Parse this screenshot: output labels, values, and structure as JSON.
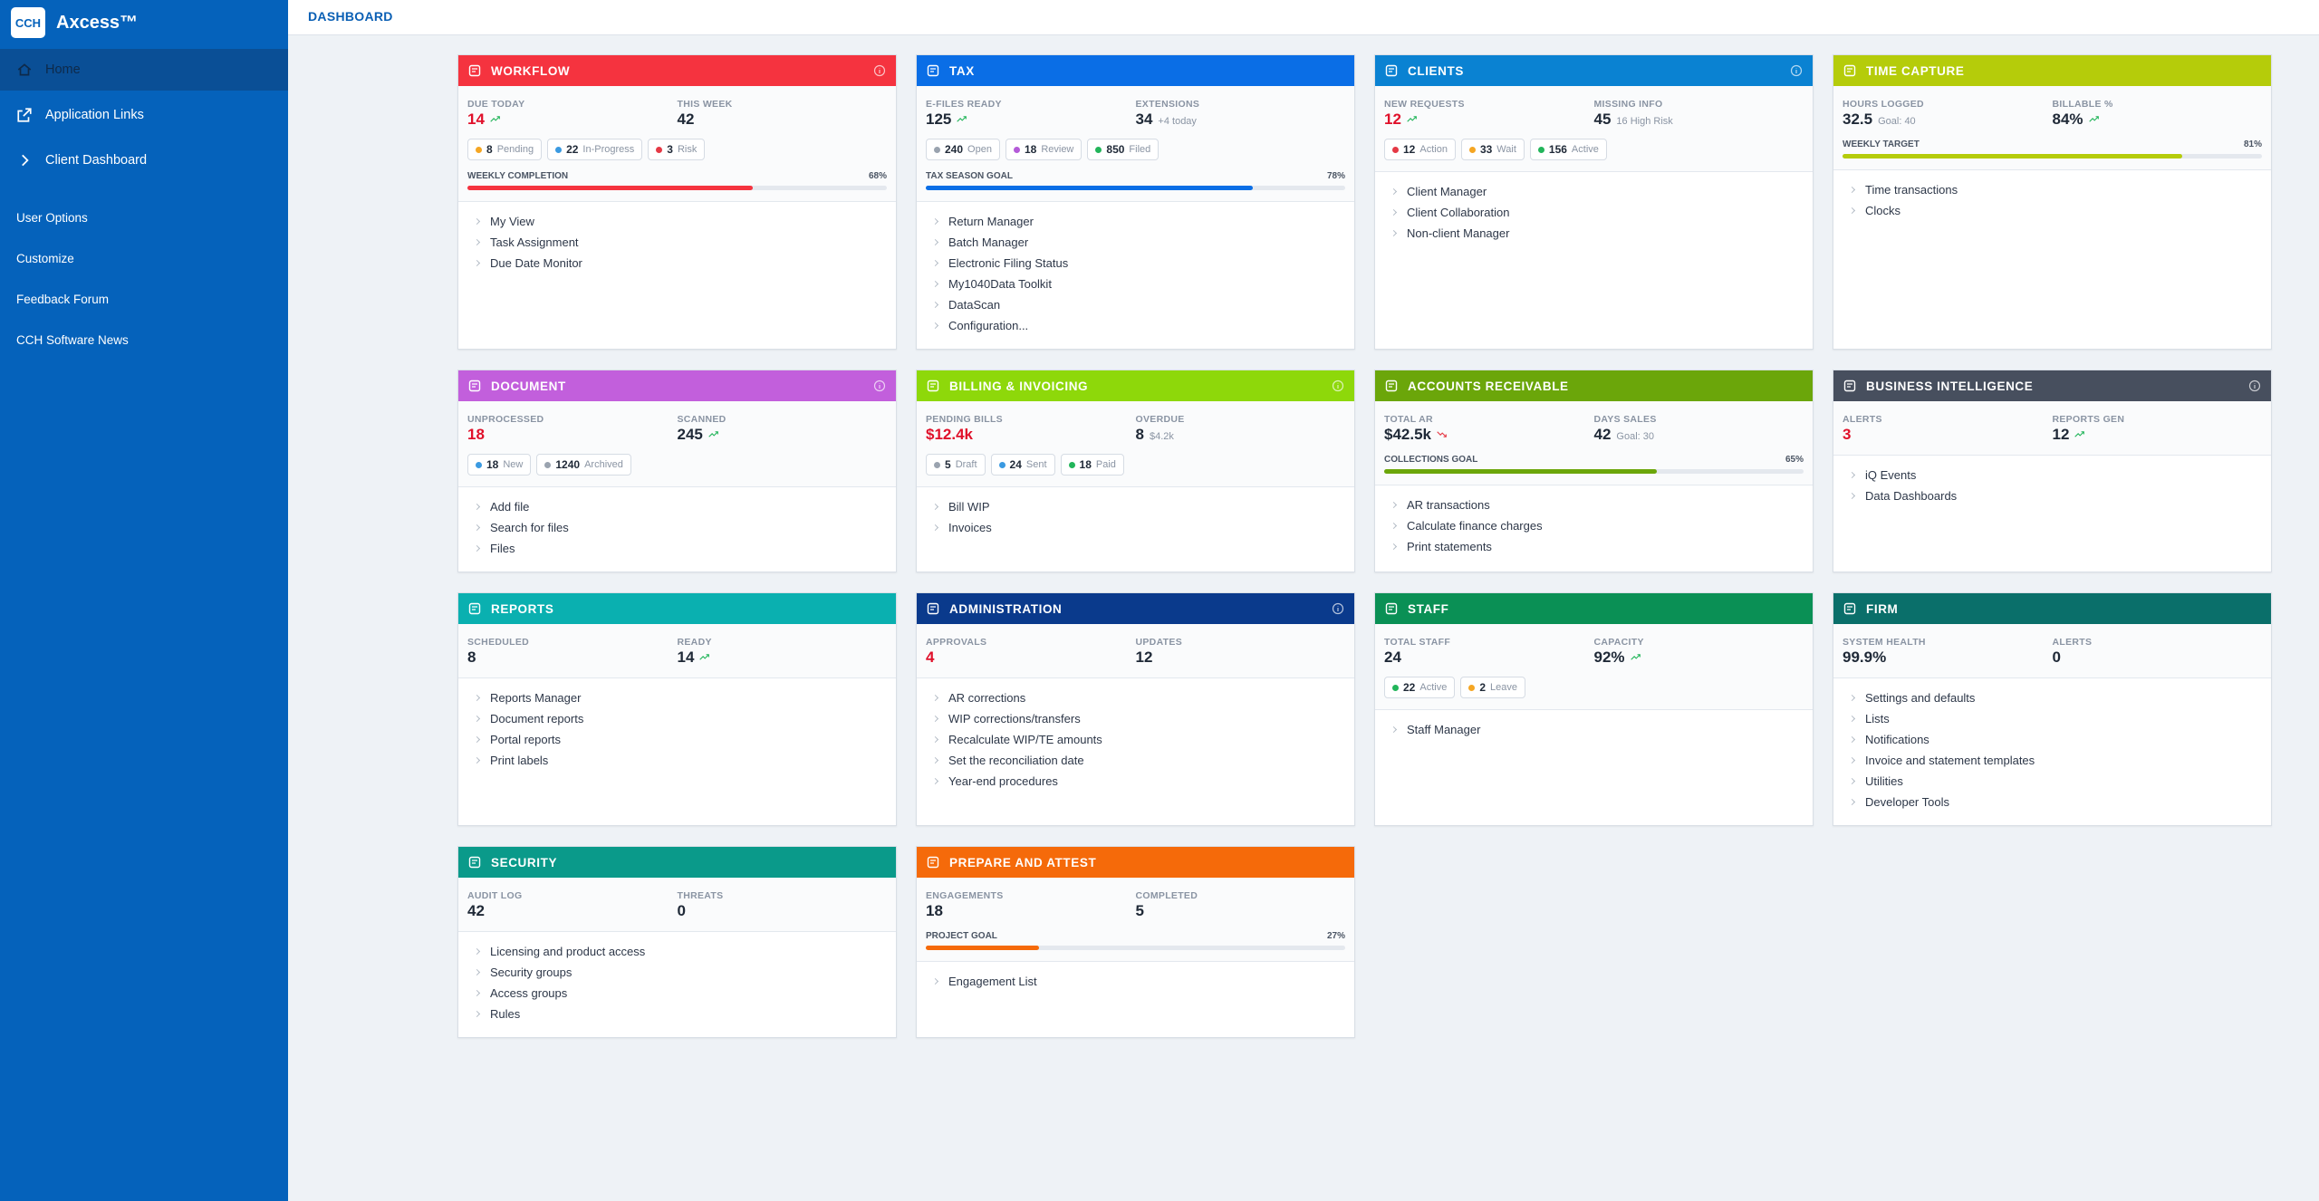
{
  "sidebar": {
    "brand": {
      "badge": "CCH",
      "name": "Axcess™"
    },
    "nav": [
      "Home",
      "Application Links",
      "Client Dashboard"
    ],
    "links": [
      "User Options",
      "Customize",
      "Feedback Forum",
      "CCH Software News"
    ]
  },
  "header": {
    "title": "DASHBOARD"
  },
  "cards": [
    {
      "title": "WORKFLOW",
      "color": "#f5333f",
      "info": true,
      "metrics": [
        {
          "label": "DUE TODAY",
          "value": "14",
          "alert": true,
          "trend": "up"
        },
        {
          "label": "THIS WEEK",
          "value": "42"
        }
      ],
      "chips": [
        {
          "count": "8",
          "label": "Pending",
          "color": "#f5a623"
        },
        {
          "count": "22",
          "label": "In-Progress",
          "color": "#3b9ae1"
        },
        {
          "count": "3",
          "label": "Risk",
          "color": "#e53945"
        }
      ],
      "progress": {
        "title": "WEEKLY COMPLETION",
        "value": 68,
        "label": "68%"
      },
      "links": [
        "My View",
        "Task Assignment",
        "Due Date Monitor"
      ]
    },
    {
      "title": "TAX",
      "color": "#0a6ee6",
      "metrics": [
        {
          "label": "E-FILES READY",
          "value": "125",
          "trend": "up"
        },
        {
          "label": "EXTENSIONS",
          "value": "34",
          "sub": "+4 today"
        }
      ],
      "chips": [
        {
          "count": "240",
          "label": "Open",
          "color": "#9aa3af"
        },
        {
          "count": "18",
          "label": "Review",
          "color": "#b45bd8"
        },
        {
          "count": "850",
          "label": "Filed",
          "color": "#22b55a"
        }
      ],
      "progress": {
        "title": "TAX SEASON GOAL",
        "value": 78,
        "label": "78%"
      },
      "links": [
        "Return Manager",
        "Batch Manager",
        "Electronic Filing Status",
        "My1040Data Toolkit",
        "DataScan",
        "Configuration..."
      ]
    },
    {
      "title": "CLIENTS",
      "color": "#0a82d2",
      "info": true,
      "metrics": [
        {
          "label": "NEW REQUESTS",
          "value": "12",
          "alert": true,
          "trend": "up"
        },
        {
          "label": "MISSING INFO",
          "value": "45",
          "sub": "16 High Risk"
        }
      ],
      "chips": [
        {
          "count": "12",
          "label": "Action",
          "color": "#e53945"
        },
        {
          "count": "33",
          "label": "Wait",
          "color": "#f5a623"
        },
        {
          "count": "156",
          "label": "Active",
          "color": "#22b55a"
        }
      ],
      "links": [
        "Client Manager",
        "Client Collaboration",
        "Non-client Manager"
      ]
    },
    {
      "title": "TIME CAPTURE",
      "color": "#b5cc0a",
      "metrics": [
        {
          "label": "HOURS LOGGED",
          "value": "32.5",
          "sub": "Goal: 40"
        },
        {
          "label": "BILLABLE %",
          "value": "84%",
          "trend": "up"
        }
      ],
      "progress": {
        "title": "WEEKLY TARGET",
        "value": 81,
        "label": "81%"
      },
      "links": [
        "Time transactions",
        "Clocks"
      ]
    },
    {
      "title": "DOCUMENT",
      "color": "#c25fdc",
      "info": true,
      "metrics": [
        {
          "label": "UNPROCESSED",
          "value": "18",
          "alert": true
        },
        {
          "label": "SCANNED",
          "value": "245",
          "trend": "up"
        }
      ],
      "chips": [
        {
          "count": "18",
          "label": "New",
          "color": "#3b9ae1"
        },
        {
          "count": "1240",
          "label": "Archived",
          "color": "#9aa3af"
        }
      ],
      "links": [
        "Add file",
        "Search for files",
        "Files"
      ]
    },
    {
      "title": "BILLING & INVOICING",
      "color": "#8ed80a",
      "info": true,
      "metrics": [
        {
          "label": "PENDING BILLS",
          "value": "$12.4k",
          "alert": true
        },
        {
          "label": "OVERDUE",
          "value": "8",
          "sub": "$4.2k"
        }
      ],
      "chips": [
        {
          "count": "5",
          "label": "Draft",
          "color": "#9aa3af"
        },
        {
          "count": "24",
          "label": "Sent",
          "color": "#3b9ae1"
        },
        {
          "count": "18",
          "label": "Paid",
          "color": "#22b55a"
        }
      ],
      "links": [
        "Bill WIP",
        "Invoices"
      ]
    },
    {
      "title": "ACCOUNTS RECEIVABLE",
      "color": "#6ba60a",
      "metrics": [
        {
          "label": "TOTAL AR",
          "value": "$42.5k",
          "trend": "down"
        },
        {
          "label": "DAYS SALES",
          "value": "42",
          "sub": "Goal: 30"
        }
      ],
      "progress": {
        "title": "COLLECTIONS GOAL",
        "value": 65,
        "label": "65%"
      },
      "links": [
        "AR transactions",
        "Calculate finance charges",
        "Print statements"
      ]
    },
    {
      "title": "BUSINESS INTELLIGENCE",
      "color": "#474f5e",
      "info": true,
      "metrics": [
        {
          "label": "ALERTS",
          "value": "3",
          "alert": true
        },
        {
          "label": "REPORTS GEN",
          "value": "12",
          "trend": "up"
        }
      ],
      "links": [
        "iQ Events",
        "Data Dashboards"
      ]
    },
    {
      "title": "REPORTS",
      "color": "#0ab0b0",
      "metrics": [
        {
          "label": "SCHEDULED",
          "value": "8"
        },
        {
          "label": "READY",
          "value": "14",
          "trend": "up"
        }
      ],
      "links": [
        "Reports Manager",
        "Document reports",
        "Portal reports",
        "Print labels"
      ]
    },
    {
      "title": "ADMINISTRATION",
      "color": "#0a3a8c",
      "info": true,
      "metrics": [
        {
          "label": "APPROVALS",
          "value": "4",
          "alert": true
        },
        {
          "label": "UPDATES",
          "value": "12"
        }
      ],
      "links": [
        "AR corrections",
        "WIP corrections/transfers",
        "Recalculate WIP/TE amounts",
        "Set the reconciliation date",
        "Year-end procedures"
      ]
    },
    {
      "title": "STAFF",
      "color": "#0a9055",
      "metrics": [
        {
          "label": "TOTAL STAFF",
          "value": "24"
        },
        {
          "label": "CAPACITY",
          "value": "92%",
          "trend": "up"
        }
      ],
      "chips": [
        {
          "count": "22",
          "label": "Active",
          "color": "#22b55a"
        },
        {
          "count": "2",
          "label": "Leave",
          "color": "#f5a623"
        }
      ],
      "links": [
        "Staff Manager"
      ]
    },
    {
      "title": "FIRM",
      "color": "#0a6f6a",
      "metrics": [
        {
          "label": "SYSTEM HEALTH",
          "value": "99.9%"
        },
        {
          "label": "ALERTS",
          "value": "0"
        }
      ],
      "links": [
        "Settings and defaults",
        "Lists",
        "Notifications",
        "Invoice and statement templates",
        "Utilities",
        "Developer Tools"
      ]
    },
    {
      "title": "SECURITY",
      "color": "#0a9a8a",
      "metrics": [
        {
          "label": "AUDIT LOG",
          "value": "42"
        },
        {
          "label": "THREATS",
          "value": "0"
        }
      ],
      "links": [
        "Licensing and product access",
        "Security groups",
        "Access groups",
        "Rules"
      ]
    },
    {
      "title": "PREPARE AND ATTEST",
      "color": "#f56a0a",
      "metrics": [
        {
          "label": "ENGAGEMENTS",
          "value": "18"
        },
        {
          "label": "COMPLETED",
          "value": "5"
        }
      ],
      "progress": {
        "title": "PROJECT GOAL",
        "value": 27,
        "label": "27%"
      },
      "links": [
        "Engagement List"
      ]
    }
  ]
}
